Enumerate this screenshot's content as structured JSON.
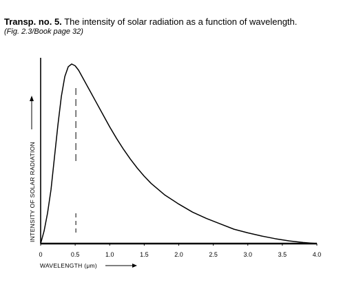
{
  "header": {
    "title_prefix": "Transp. no. 5.",
    "title_text": "The intensity of solar radiation as a function of wavelength.",
    "subtitle": "(Fig. 2.3/Book page 32)"
  },
  "chart_data": {
    "type": "line",
    "xlabel": "WAVELENGTH (μm)",
    "ylabel": "INTENSITY OF SOLAR RADIATION",
    "xlim": [
      0,
      4.0
    ],
    "ylim": [
      0,
      1.0
    ],
    "xticks": [
      "0",
      "0.5",
      "1.0",
      "1.5",
      "2.0",
      "2.5",
      "3.0",
      "3.5",
      "4.0"
    ],
    "xtick_values": [
      0,
      0.5,
      1.0,
      1.5,
      2.0,
      2.5,
      3.0,
      3.5,
      4.0
    ],
    "peak_x": 0.5,
    "series": [
      {
        "x": [
          0,
          0.05,
          0.1,
          0.15,
          0.2,
          0.25,
          0.3,
          0.35,
          0.4,
          0.45,
          0.5,
          0.55,
          0.6,
          0.7,
          0.8,
          0.9,
          1.0,
          1.1,
          1.2,
          1.3,
          1.4,
          1.5,
          1.6,
          1.8,
          2.0,
          2.2,
          2.4,
          2.6,
          2.8,
          3.0,
          3.2,
          3.4,
          3.6,
          3.8,
          4.0
        ],
        "y": [
          0,
          0.07,
          0.17,
          0.3,
          0.48,
          0.66,
          0.82,
          0.93,
          0.985,
          1.0,
          0.99,
          0.965,
          0.93,
          0.86,
          0.79,
          0.72,
          0.65,
          0.585,
          0.525,
          0.47,
          0.42,
          0.375,
          0.335,
          0.27,
          0.22,
          0.175,
          0.14,
          0.11,
          0.08,
          0.06,
          0.042,
          0.027,
          0.015,
          0.006,
          0.0
        ]
      }
    ],
    "grid": false,
    "legend": "none"
  }
}
